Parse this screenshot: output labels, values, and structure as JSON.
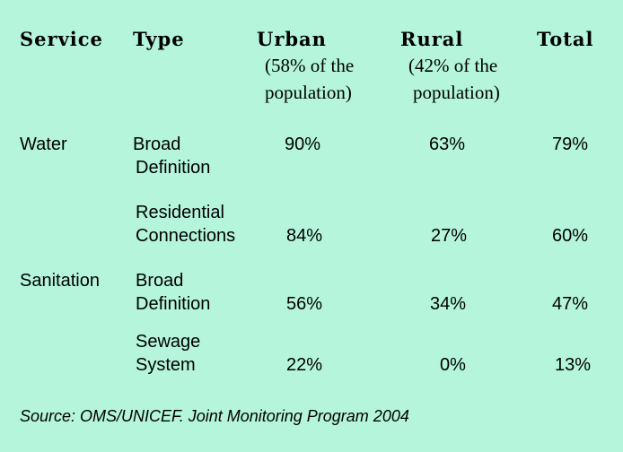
{
  "headers": {
    "service": "Service",
    "type": "Type",
    "urban": "Urban",
    "rural": "Rural",
    "total": "Total",
    "urban_note_1": "(58% of the",
    "urban_note_2": "population)",
    "rural_note_1": "(42% of the",
    "rural_note_2": "population)"
  },
  "rows": [
    {
      "service": "Water",
      "type_line1": "Broad",
      "type_line2": "Definition",
      "urban": "90%",
      "rural": "63%",
      "total": "79%"
    },
    {
      "service": "",
      "type_line1": "Residential",
      "type_line2": "Connections",
      "urban": "84%",
      "rural": "27%",
      "total": "60%"
    },
    {
      "service": "Sanitation",
      "type_line1": "Broad",
      "type_line2": "Definition",
      "urban": "56%",
      "rural": "34%",
      "total": "47%"
    },
    {
      "service": "",
      "type_line1": "Sewage",
      "type_line2": "System",
      "urban": "22%",
      "rural": "0%",
      "total": "13%"
    }
  ],
  "source": "Source: OMS/UNICEF. Joint Monitoring Program 2004",
  "colors": {
    "background": "#b4f5dc",
    "text": "#000000"
  }
}
